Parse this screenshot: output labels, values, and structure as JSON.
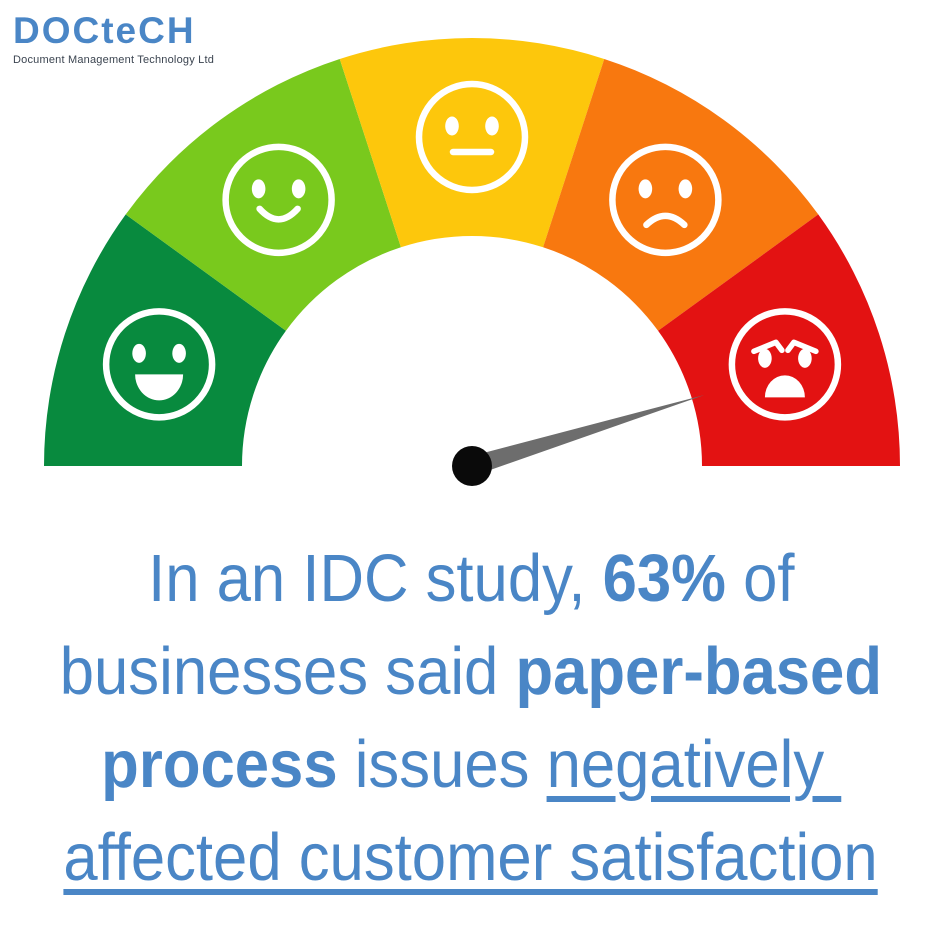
{
  "logo": {
    "wordmark": "DOCteCH",
    "subtitle": "Document Management Technology Ltd",
    "brand_color": "#4a86c6",
    "subtitle_color": "#3b4450"
  },
  "gauge": {
    "kind": "customer-satisfaction-meter",
    "segments": [
      {
        "mood": "very-happy",
        "color": "#088a3e"
      },
      {
        "mood": "happy",
        "color": "#79c91d"
      },
      {
        "mood": "neutral",
        "color": "#fdc70c"
      },
      {
        "mood": "sad",
        "color": "#f8780f"
      },
      {
        "mood": "angry",
        "color": "#e31212"
      }
    ],
    "face_color": "#ffffff",
    "needle": {
      "color": "#6d6d6d",
      "hub_color": "#0a0a0a",
      "points_to": "angry",
      "angle_deg": 17
    }
  },
  "statement": {
    "text_color": "#4a86c6",
    "lines": [
      {
        "segments": [
          {
            "t": "In an IDC study, ",
            "style": "regular"
          },
          {
            "t": "63%",
            "style": "bold"
          },
          {
            "t": " of",
            "style": "regular"
          }
        ]
      },
      {
        "segments": [
          {
            "t": "businesses said ",
            "style": "regular"
          },
          {
            "t": "paper-based",
            "style": "bold"
          }
        ]
      },
      {
        "segments": [
          {
            "t": "process",
            "style": "bold"
          },
          {
            "t": " issues ",
            "style": "regular"
          },
          {
            "t": "negatively ",
            "style": "underline"
          }
        ]
      },
      {
        "segments": [
          {
            "t": "affected customer satisfaction",
            "style": "underline"
          }
        ]
      }
    ]
  }
}
